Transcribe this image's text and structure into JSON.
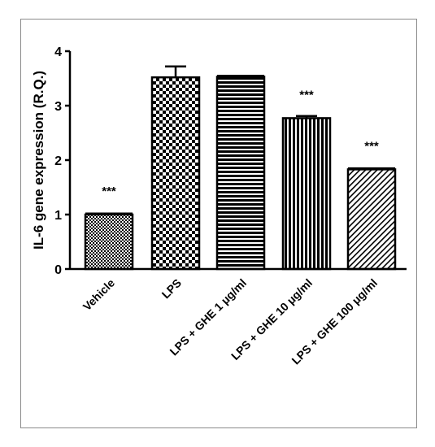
{
  "chart_data": {
    "type": "bar",
    "title": "",
    "xlabel": "",
    "ylabel": "IL-6 gene expression (R.Q.)",
    "ylim": [
      0,
      4
    ],
    "yticks": [
      0,
      1,
      2,
      3,
      4
    ],
    "grid": false,
    "categories": [
      "Vehicle",
      "LPS",
      "LPS + GHE 1 μg/ml",
      "LPS + GHE 10 μg/ml",
      "LPS + GHE 100 μg/ml"
    ],
    "values": [
      1.0,
      3.52,
      3.53,
      2.77,
      1.83
    ],
    "errors": [
      0.01,
      0.2,
      0.02,
      0.04,
      0.02
    ],
    "significance": [
      "***",
      "",
      "",
      "***",
      "***"
    ],
    "patterns": [
      "small-checker",
      "large-checker",
      "horizontal-stripes",
      "vertical-stripes",
      "diagonal-hatch"
    ],
    "colors": {
      "bar_stroke": "#000000",
      "pattern_dark": "#000000",
      "pattern_light": "#ffffff",
      "axis": "#000000"
    }
  }
}
